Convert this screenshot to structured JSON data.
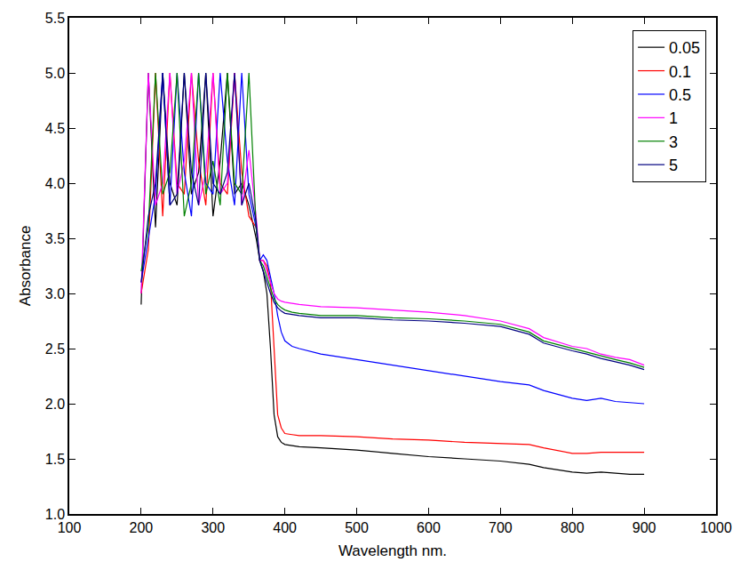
{
  "chart_data": {
    "type": "line",
    "x_label": "Wavelength nm.",
    "y_label": "Absorbance",
    "x": [
      200,
      210,
      220,
      230,
      240,
      250,
      260,
      270,
      280,
      290,
      300,
      310,
      320,
      330,
      340,
      350,
      360,
      365,
      370,
      375,
      380,
      385,
      390,
      395,
      400,
      410,
      420,
      450,
      500,
      550,
      600,
      650,
      700,
      740,
      760,
      800,
      820,
      840,
      860,
      880,
      900
    ],
    "series": [
      {
        "name": "0.05",
        "color": "#000000",
        "values": [
          2.9,
          5.0,
          3.6,
          5.0,
          4.0,
          3.8,
          5.0,
          3.9,
          4.1,
          5.0,
          3.7,
          4.2,
          5.0,
          3.9,
          4.0,
          3.8,
          3.5,
          3.3,
          3.2,
          3.0,
          2.5,
          1.9,
          1.7,
          1.65,
          1.63,
          1.62,
          1.61,
          1.6,
          1.58,
          1.55,
          1.52,
          1.5,
          1.48,
          1.45,
          1.42,
          1.38,
          1.37,
          1.38,
          1.37,
          1.36,
          1.36
        ]
      },
      {
        "name": "0.1",
        "color": "#ff0000",
        "values": [
          3.0,
          3.4,
          5.0,
          3.7,
          5.0,
          4.0,
          3.9,
          5.0,
          4.2,
          3.8,
          5.0,
          4.0,
          3.9,
          5.0,
          4.1,
          3.7,
          3.6,
          3.3,
          3.3,
          3.25,
          3.1,
          2.5,
          1.9,
          1.78,
          1.73,
          1.72,
          1.71,
          1.71,
          1.7,
          1.68,
          1.67,
          1.65,
          1.64,
          1.63,
          1.6,
          1.55,
          1.55,
          1.56,
          1.56,
          1.56,
          1.56
        ]
      },
      {
        "name": "0.5",
        "color": "#0000ff",
        "values": [
          3.1,
          3.5,
          3.9,
          5.0,
          3.8,
          5.0,
          4.1,
          3.7,
          5.0,
          4.0,
          3.9,
          5.0,
          4.2,
          3.8,
          5.0,
          3.9,
          3.6,
          3.3,
          3.35,
          3.3,
          3.15,
          3.0,
          2.8,
          2.65,
          2.57,
          2.52,
          2.5,
          2.45,
          2.4,
          2.35,
          2.3,
          2.25,
          2.2,
          2.17,
          2.12,
          2.05,
          2.03,
          2.05,
          2.02,
          2.01,
          2.0
        ]
      },
      {
        "name": "1",
        "color": "#ff00ff",
        "values": [
          3.0,
          5.0,
          3.8,
          4.0,
          5.0,
          3.9,
          4.2,
          5.0,
          3.8,
          4.1,
          5.0,
          3.9,
          4.0,
          5.0,
          3.8,
          4.3,
          3.7,
          3.3,
          3.3,
          3.2,
          3.1,
          3.0,
          2.95,
          2.93,
          2.92,
          2.91,
          2.9,
          2.88,
          2.87,
          2.85,
          2.83,
          2.8,
          2.75,
          2.68,
          2.6,
          2.52,
          2.5,
          2.45,
          2.42,
          2.4,
          2.35
        ]
      },
      {
        "name": "3",
        "color": "#008000",
        "values": [
          3.2,
          3.6,
          5.0,
          3.9,
          4.1,
          5.0,
          3.7,
          4.0,
          5.0,
          3.9,
          4.2,
          3.8,
          5.0,
          4.0,
          3.9,
          5.0,
          3.6,
          3.3,
          3.25,
          3.15,
          3.05,
          2.95,
          2.9,
          2.87,
          2.85,
          2.83,
          2.82,
          2.8,
          2.8,
          2.78,
          2.77,
          2.75,
          2.72,
          2.65,
          2.57,
          2.5,
          2.47,
          2.43,
          2.4,
          2.37,
          2.33
        ]
      },
      {
        "name": "5",
        "color": "#000080",
        "values": [
          3.1,
          3.7,
          4.0,
          5.0,
          3.8,
          3.9,
          5.0,
          4.1,
          3.8,
          5.0,
          4.0,
          3.9,
          4.1,
          5.0,
          3.8,
          4.0,
          3.65,
          3.3,
          3.2,
          3.1,
          3.0,
          2.92,
          2.87,
          2.84,
          2.82,
          2.81,
          2.8,
          2.78,
          2.78,
          2.76,
          2.75,
          2.73,
          2.7,
          2.63,
          2.55,
          2.48,
          2.45,
          2.41,
          2.38,
          2.35,
          2.31
        ]
      }
    ],
    "xlim": [
      100,
      1000
    ],
    "xticks": [
      100,
      200,
      300,
      400,
      500,
      600,
      700,
      800,
      900,
      1000
    ],
    "ylim": [
      1.0,
      5.5
    ],
    "yticks": [
      {
        "value": 1.0,
        "label": "1.0"
      },
      1.5,
      {
        "value": 2.0,
        "label": "2.0"
      },
      2.5,
      {
        "value": 3.0,
        "label": "3.0"
      },
      3.5,
      {
        "value": 4.0,
        "label": "4.0"
      },
      4.5,
      {
        "value": 5.0,
        "label": "5.0"
      },
      5.5
    ],
    "grid": false,
    "legend": "top right"
  }
}
